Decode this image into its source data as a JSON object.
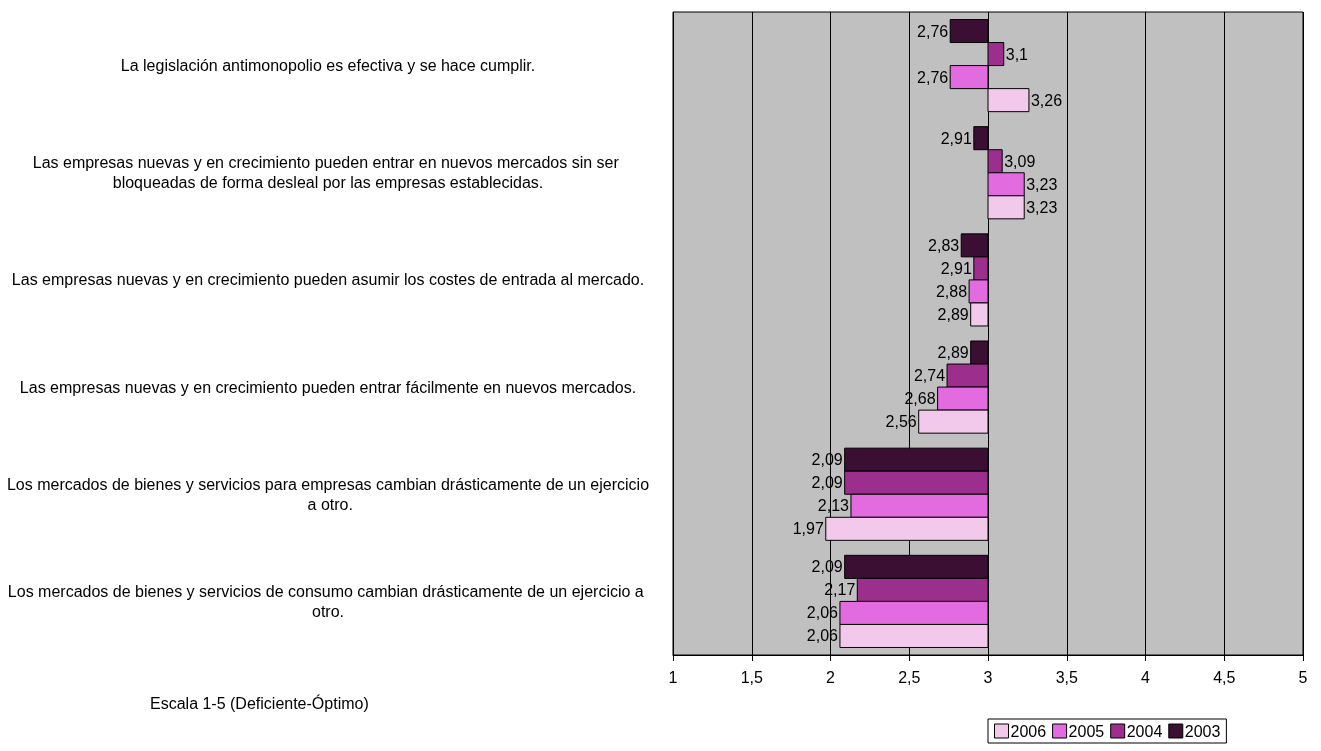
{
  "chart_data": {
    "type": "bar",
    "orientation": "horizontal",
    "categories": [
      "La legislación antimonopolio es efectiva y se hace cumplir.",
      "Las empresas nuevas y en crecimiento pueden entrar en nuevos mercados sin ser bloqueadas de forma desleal por las empresas establecidas.",
      "Las empresas nuevas y en crecimiento pueden asumir los costes de entrada al mercado.",
      "Las empresas nuevas y en crecimiento pueden entrar fácilmente en nuevos mercados.",
      "Los mercados de bienes y servicios para empresas cambian drásticamente de un ejercicio a otro.",
      "Los mercados de bienes y servicios de consumo cambian drásticamente de un ejercicio a otro."
    ],
    "series": [
      {
        "name": "2003",
        "color": "#3a0f33",
        "base": [
          3,
          3,
          3,
          3,
          3,
          3
        ],
        "values": [
          -0.24,
          -0.09,
          -0.17,
          -0.11,
          -0.91,
          -0.91
        ],
        "value_labels": [
          "2,76",
          "2,91",
          "2,83",
          "2,89",
          "2,09",
          "2,09"
        ]
      },
      {
        "name": "2004",
        "color": "#9c2e8e",
        "base": [
          3,
          3,
          3,
          3,
          3,
          3
        ],
        "values": [
          0.1,
          0.09,
          -0.09,
          -0.26,
          -0.91,
          -0.83
        ],
        "value_labels": [
          "3,1",
          "3,09",
          "2,91",
          "2,74",
          "2,09",
          "2,17"
        ]
      },
      {
        "name": "2005",
        "color": "#e36be0",
        "base": [
          3,
          3,
          3,
          3,
          3,
          3
        ],
        "values": [
          -0.24,
          0.23,
          -0.12,
          -0.32,
          -0.87,
          -0.94
        ],
        "value_labels": [
          "2,76",
          "3,23",
          "2,88",
          "2,68",
          "2,13",
          "2,06"
        ]
      },
      {
        "name": "2006",
        "color": "#f2c9ea",
        "base": [
          3,
          3,
          3,
          3,
          3,
          3
        ],
        "values": [
          0.26,
          0.23,
          -0.11,
          -0.44,
          -1.03,
          -0.94
        ],
        "value_labels": [
          "3,26",
          "3,23",
          "2,89",
          "2,56",
          "1,97",
          "2,06"
        ]
      }
    ],
    "xlim": [
      1,
      5
    ],
    "xticks": [
      1,
      {
        "value": 1.5,
        "label": "1,5"
      },
      2,
      {
        "value": 2.5,
        "label": "2,5"
      },
      3,
      {
        "value": 3.5,
        "label": "3,5"
      },
      4,
      {
        "value": 4.5,
        "label": "4,5"
      },
      5
    ],
    "grid": "x",
    "legend": "bottom",
    "annotations": [
      "Escala 1-5 (Deficiente-Óptimo)"
    ]
  }
}
